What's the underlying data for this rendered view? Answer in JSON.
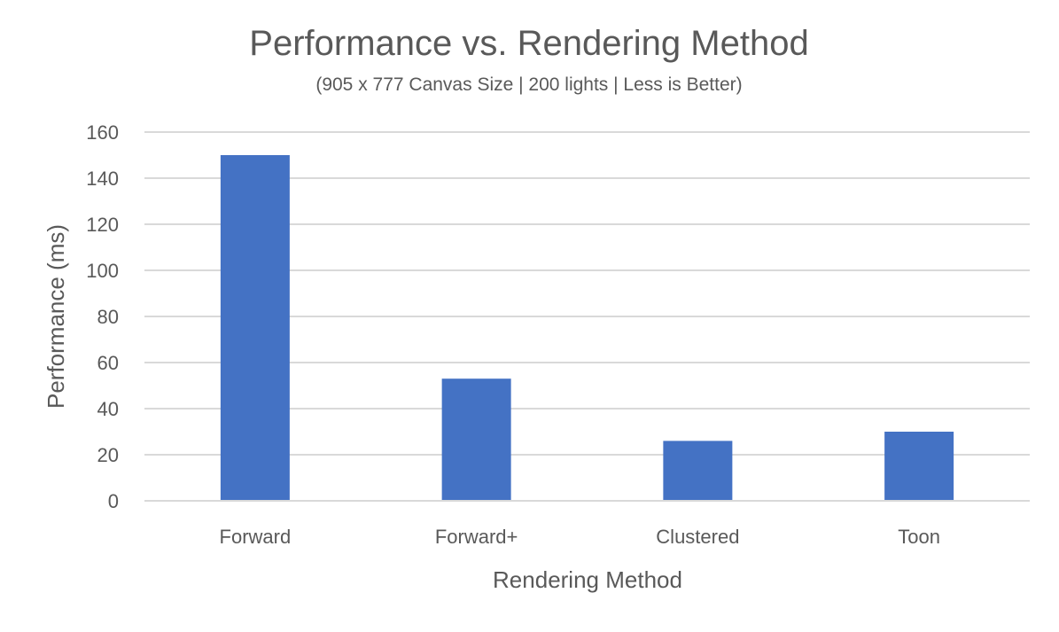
{
  "chart_data": {
    "type": "bar",
    "title": "Performance vs.  Rendering Method",
    "subtitle": "(905 x 777 Canvas Size | 200 lights | Less is Better)",
    "xlabel": "Rendering Method",
    "ylabel": "Performance (ms)",
    "categories": [
      "Forward",
      "Forward+",
      "Clustered",
      "Toon"
    ],
    "values": [
      150,
      53,
      26,
      30
    ],
    "ylim": [
      0,
      160
    ],
    "yticks": [
      "0",
      "20",
      "40",
      "60",
      "80",
      "100",
      "120",
      "140",
      "160"
    ],
    "grid": true,
    "legend": "none",
    "bar_color": "#4472C4"
  }
}
